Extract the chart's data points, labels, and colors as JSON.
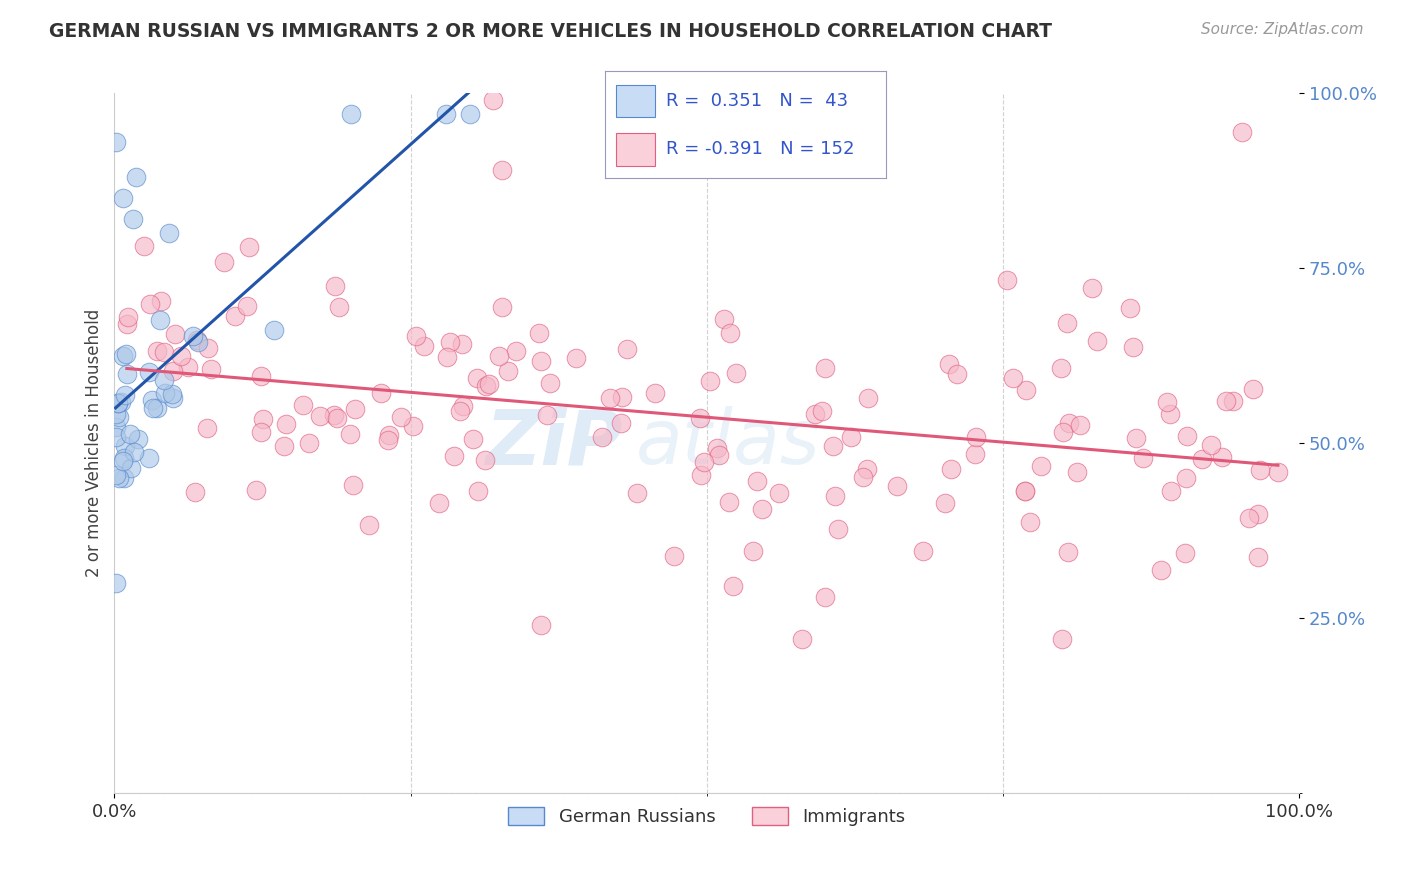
{
  "title": "GERMAN RUSSIAN VS IMMIGRANTS 2 OR MORE VEHICLES IN HOUSEHOLD CORRELATION CHART",
  "source": "Source: ZipAtlas.com",
  "ylabel": "2 or more Vehicles in Household",
  "blue_R": 0.351,
  "blue_N": 43,
  "pink_R": -0.391,
  "pink_N": 152,
  "blue_color": "#adc8e8",
  "pink_color": "#f5b8c8",
  "blue_edge_color": "#5588cc",
  "pink_edge_color": "#e06080",
  "blue_line_color": "#2255aa",
  "pink_line_color": "#e05878",
  "blue_legend_color": "#c8ddf5",
  "pink_legend_color": "#fad0da",
  "legend_text_color": "#3355cc",
  "title_color": "#333333",
  "source_color": "#999999",
  "grid_color": "#cccccc",
  "bg_color": "#ffffff",
  "watermark1": "ZiP",
  "watermark2": "atlas",
  "ytick_color": "#5588cc",
  "xtick_color": "#333333"
}
